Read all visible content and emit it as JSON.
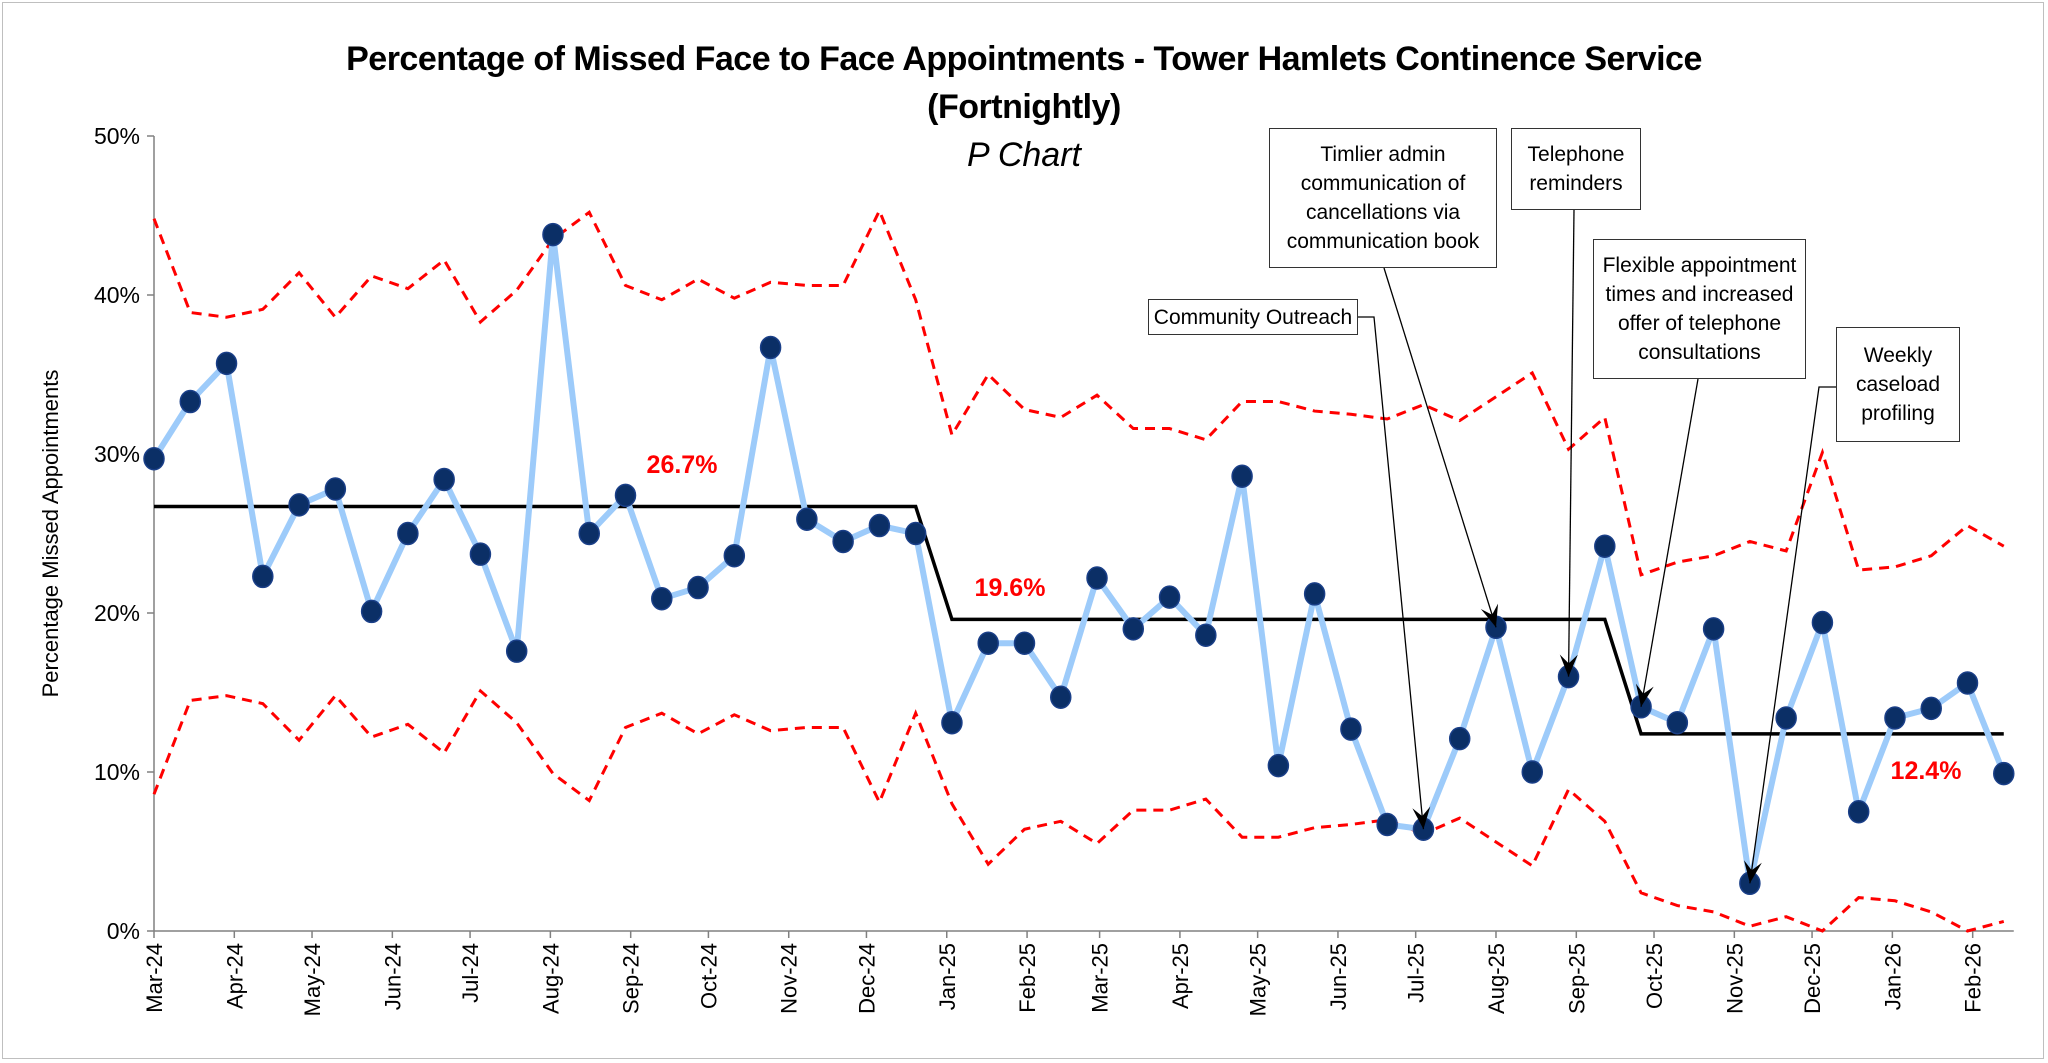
{
  "chart_data": {
    "type": "line",
    "chart_kind": "P Chart",
    "title": "Percentage of Missed Face to Face Appointments - Tower Hamlets Continence Service",
    "title_line2": "(Fortnightly)",
    "subtitle": "P Chart",
    "ylabel": "Percentage Missed Appointments",
    "xlabel": "",
    "ylim": [
      0,
      50
    ],
    "yticks": [
      "0%",
      "10%",
      "20%",
      "30%",
      "40%",
      "50%"
    ],
    "xticks": [
      "Mar-24",
      "Apr-24",
      "May-24",
      "Jun-24",
      "Jul-24",
      "Aug-24",
      "Sep-24",
      "Oct-24",
      "Nov-24",
      "Dec-24",
      "Jan-25",
      "Feb-25",
      "Mar-25",
      "Apr-25",
      "May-25",
      "Jun-25",
      "Jul-25",
      "Aug-25",
      "Sep-25",
      "Oct-25",
      "Nov-25",
      "Dec-25",
      "Jan-26",
      "Feb-26"
    ],
    "start_date": "2024-03-01",
    "interval_days": 14,
    "grid": false,
    "series": [
      {
        "name": "Percentage missed",
        "color": "#9dcbfa",
        "marker_color": "#0b2f66",
        "values": [
          29.7,
          33.3,
          35.7,
          22.3,
          26.8,
          27.8,
          20.1,
          25.0,
          28.4,
          23.7,
          17.6,
          43.8,
          25.0,
          27.4,
          20.9,
          21.6,
          23.6,
          36.7,
          25.9,
          24.5,
          25.5,
          25.0,
          13.1,
          18.1,
          18.1,
          14.7,
          22.2,
          19.0,
          21.0,
          18.6,
          28.6,
          10.4,
          21.2,
          12.7,
          6.7,
          6.4,
          12.1,
          19.1,
          10.0,
          16.0,
          24.2,
          14.1,
          13.1,
          19.0,
          3.0,
          13.4,
          19.4,
          7.5,
          13.4,
          14.0,
          15.6,
          9.9
        ]
      },
      {
        "name": "Centre line",
        "color": "#000000",
        "values": [
          26.7,
          26.7,
          26.7,
          26.7,
          26.7,
          26.7,
          26.7,
          26.7,
          26.7,
          26.7,
          26.7,
          26.7,
          26.7,
          26.7,
          26.7,
          26.7,
          26.7,
          26.7,
          26.7,
          26.7,
          26.7,
          26.7,
          19.6,
          19.6,
          19.6,
          19.6,
          19.6,
          19.6,
          19.6,
          19.6,
          19.6,
          19.6,
          19.6,
          19.6,
          19.6,
          19.6,
          19.6,
          19.6,
          19.6,
          19.6,
          19.6,
          12.4,
          12.4,
          12.4,
          12.4,
          12.4,
          12.4,
          12.4,
          12.4,
          12.4,
          12.4,
          12.4
        ]
      },
      {
        "name": "Upper control limit",
        "color": "#ff0000",
        "values": [
          44.8,
          38.9,
          38.6,
          39.1,
          41.4,
          38.6,
          41.2,
          40.4,
          42.2,
          38.3,
          40.3,
          43.5,
          45.2,
          40.6,
          39.7,
          41.0,
          39.8,
          40.8,
          40.6,
          40.6,
          45.3,
          39.7,
          31.2,
          35.0,
          32.8,
          32.3,
          33.7,
          31.6,
          31.6,
          30.9,
          33.3,
          33.3,
          32.7,
          32.5,
          32.2,
          33.1,
          32.1,
          33.6,
          35.1,
          30.3,
          32.3,
          22.4,
          23.2,
          23.6,
          24.5,
          23.9,
          30.1,
          22.7,
          22.9,
          23.6,
          25.5,
          24.2
        ]
      },
      {
        "name": "Lower control limit",
        "color": "#ff0000",
        "values": [
          8.6,
          14.5,
          14.8,
          14.3,
          12.0,
          14.8,
          12.2,
          13.0,
          11.2,
          15.1,
          13.1,
          9.9,
          8.2,
          12.8,
          13.7,
          12.4,
          13.6,
          12.6,
          12.8,
          12.8,
          8.1,
          13.7,
          8.0,
          4.2,
          6.4,
          6.9,
          5.5,
          7.6,
          7.6,
          8.3,
          5.9,
          5.9,
          6.5,
          6.7,
          7.0,
          6.1,
          7.1,
          5.6,
          4.1,
          8.9,
          6.9,
          2.4,
          1.6,
          1.2,
          0.3,
          0.9,
          0.0,
          2.1,
          1.9,
          1.2,
          0.0,
          0.6
        ]
      }
    ],
    "centre_labels": [
      "26.7%",
      "19.6%",
      "12.4%"
    ],
    "centre_label_color": "#ff0000",
    "annotations": [
      {
        "text": "Community Outreach",
        "target_point": 36
      },
      {
        "text": "Timlier admin communication of cancellations via communication book",
        "target_point": 38
      },
      {
        "text": "Telephone reminders",
        "target_point": 40
      },
      {
        "text": "Flexible appointment times and increased offer of telephone consultations",
        "target_point": 42
      },
      {
        "text": "Weekly caseload profiling",
        "target_point": 45
      }
    ]
  }
}
